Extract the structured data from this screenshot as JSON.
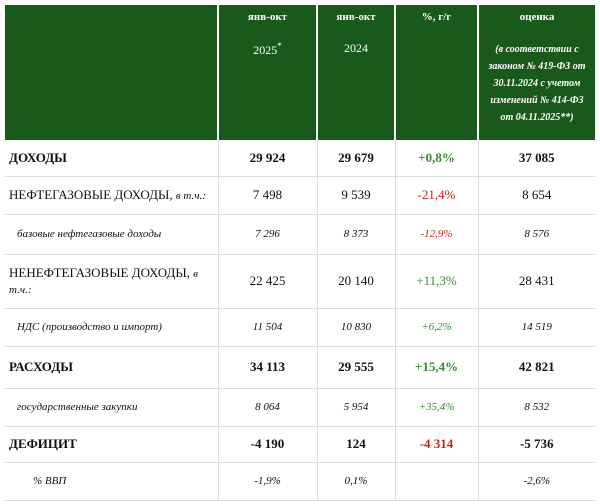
{
  "header": {
    "columns": [
      {
        "line1": "янв-окт",
        "line2": "2025",
        "mark": "*"
      },
      {
        "line1": "янв-окт",
        "line2": "2024"
      },
      {
        "line1": "%, г/г"
      },
      {
        "line1": "оценка",
        "line2": "(в соответствии с законом № 419-ФЗ от 30.11.2024 с учетом изменений № 414-ФЗ от 04.11.2025**)"
      }
    ]
  },
  "table": {
    "rows": [
      {
        "label": "ДОХОДЫ",
        "v2025": "29 924",
        "v2024": "29 679",
        "yoy": "+0,8%",
        "est": "37 085"
      },
      {
        "label": "НЕФТЕГАЗОВЫЕ ДОХОДЫ,",
        "note": "в т.ч.:",
        "v2025": "7 498",
        "v2024": "9 539",
        "yoy": "-21,4%",
        "est": "8 654"
      },
      {
        "label": "базовые нефтегазовые доходы",
        "v2025": "7 296",
        "v2024": "8 373",
        "yoy": "-12,9%",
        "est": "8 576"
      },
      {
        "label": "НЕНЕФТЕГАЗОВЫЕ ДОХОДЫ,",
        "note": "в т.ч.:",
        "v2025": "22 425",
        "v2024": "20 140",
        "yoy": "+11,3%",
        "est": "28 431"
      },
      {
        "label": "НДС (производство и импорт)",
        "v2025": "11 504",
        "v2024": "10 830",
        "yoy": "+6,2%",
        "est": "14 519"
      },
      {
        "label": "РАСХОДЫ",
        "v2025": "34 113",
        "v2024": "29 555",
        "yoy": "+15,4%",
        "est": "42 821"
      },
      {
        "label": "государственные закупки",
        "v2025": "8 064",
        "v2024": "5 954",
        "yoy": "+35,4%",
        "est": "8 532"
      },
      {
        "label": "ДЕФИЦИТ",
        "v2025": "-4 190",
        "v2024": "124",
        "yoy": "-4 314",
        "est": "-5 736"
      },
      {
        "label": "% ВВП",
        "v2025": "-1,9%",
        "v2024": "0,1%",
        "est": "-2,6%"
      }
    ]
  }
}
